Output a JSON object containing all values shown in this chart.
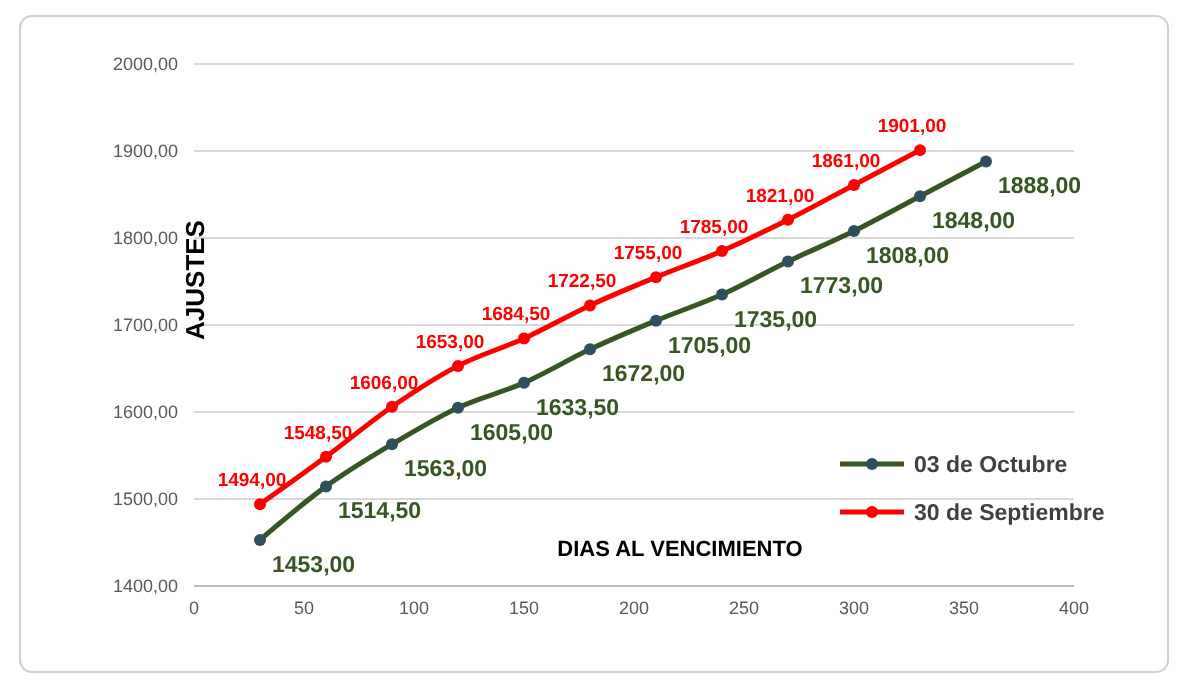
{
  "chart_data": {
    "type": "line",
    "xlabel": "DIAS AL VENCIMIENTO",
    "ylabel": "AJUSTES",
    "xlim": [
      0,
      400
    ],
    "xticks": [
      0,
      50,
      100,
      150,
      200,
      250,
      300,
      350,
      400
    ],
    "ylim": [
      1400,
      2000
    ],
    "yticks": [
      {
        "value": 1400,
        "label": "1400,00"
      },
      {
        "value": 1500,
        "label": "1500,00"
      },
      {
        "value": 1600,
        "label": "1600,00"
      },
      {
        "value": 1700,
        "label": "1700,00"
      },
      {
        "value": 1800,
        "label": "1800,00"
      },
      {
        "value": 1900,
        "label": "1900,00"
      },
      {
        "value": 2000,
        "label": "2000,00"
      }
    ],
    "grid": "y",
    "legend": "right",
    "marker": "circle",
    "line_style": "solid",
    "series": [
      {
        "name": "03 de Octubre",
        "color": "#375623",
        "x": [
          30,
          60,
          90,
          120,
          150,
          180,
          210,
          240,
          270,
          300,
          330,
          360
        ],
        "values": [
          1453,
          1514.5,
          1563,
          1605,
          1633.5,
          1672,
          1705,
          1735,
          1773,
          1808,
          1848,
          1888
        ],
        "value_labels": [
          "1453,00",
          "1514,50",
          "1563,00",
          "1605,00",
          "1633,50",
          "1672,00",
          "1705,00",
          "1735,00",
          "1773,00",
          "1808,00",
          "1848,00",
          "1888,00"
        ]
      },
      {
        "name": "30 de Septiembre",
        "color": "#ff0000",
        "x": [
          30,
          60,
          90,
          120,
          150,
          180,
          210,
          240,
          270,
          300,
          330
        ],
        "values": [
          1494,
          1548.5,
          1606,
          1653,
          1684.5,
          1722.5,
          1755,
          1785,
          1821,
          1861,
          1901
        ],
        "value_labels": [
          "1494,00",
          "1548,50",
          "1606,00",
          "1653,00",
          "1684,50",
          "1722,50",
          "1755,00",
          "1785,00",
          "1821,00",
          "1861,00",
          "1901,00"
        ]
      }
    ]
  }
}
